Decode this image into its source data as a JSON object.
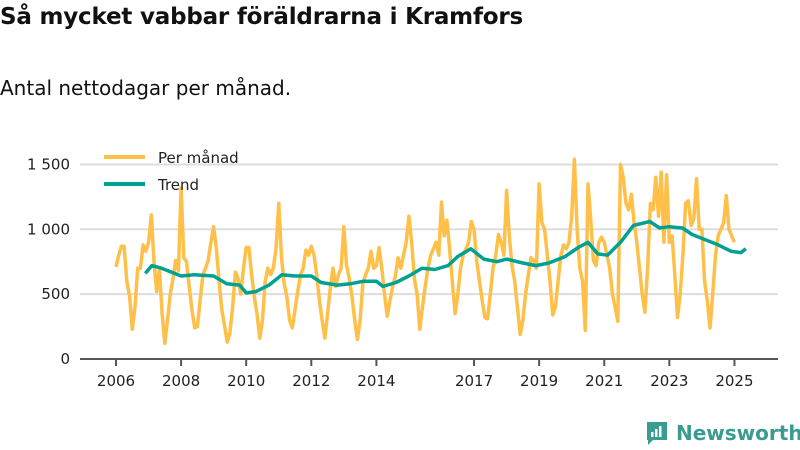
{
  "title": "Så mycket vabbar föräldrarna i Kramfors",
  "subtitle": "Antal nettodagar per månad.",
  "brand": "Newsworthy",
  "colors": {
    "monthly": "#ffc04a",
    "trend": "#00a192",
    "grid": "#dddddd",
    "axis": "#555555",
    "brand": "#3a9c91"
  },
  "chart_data": {
    "type": "line",
    "title": "Så mycket vabbar föräldrarna i Kramfors",
    "subtitle": "Antal nettodagar per månad.",
    "xlabel": "",
    "ylabel": "",
    "ylim": [
      0,
      1600
    ],
    "xlim": [
      2005.6,
      2025.7
    ],
    "yticks": [
      {
        "v": 0,
        "label": "0"
      },
      {
        "v": 500,
        "label": "500"
      },
      {
        "v": 1000,
        "label": "1 000"
      },
      {
        "v": 1500,
        "label": "1 500"
      }
    ],
    "xticks": [
      {
        "v": 2006,
        "label": "2006"
      },
      {
        "v": 2008,
        "label": "2008"
      },
      {
        "v": 2010,
        "label": "2010"
      },
      {
        "v": 2012,
        "label": "2012"
      },
      {
        "v": 2014,
        "label": "2014"
      },
      {
        "v": 2017,
        "label": "2017"
      },
      {
        "v": 2019,
        "label": "2019"
      },
      {
        "v": 2021,
        "label": "2021"
      },
      {
        "v": 2023,
        "label": "2023"
      },
      {
        "v": 2025,
        "label": "2025"
      }
    ],
    "grid": true,
    "legend_position": "top-left",
    "series": [
      {
        "name": "Per månad",
        "start": "2006-01",
        "frequency": "monthly",
        "values": [
          710,
          800,
          870,
          870,
          600,
          480,
          230,
          400,
          700,
          700,
          880,
          830,
          900,
          1110,
          750,
          520,
          700,
          350,
          120,
          300,
          500,
          620,
          760,
          680,
          1320,
          780,
          750,
          560,
          380,
          240,
          250,
          450,
          640,
          700,
          760,
          900,
          1020,
          850,
          600,
          380,
          260,
          130,
          200,
          400,
          670,
          620,
          500,
          700,
          860,
          860,
          650,
          480,
          350,
          160,
          300,
          600,
          700,
          650,
          700,
          850,
          1200,
          780,
          580,
          480,
          300,
          240,
          380,
          520,
          650,
          700,
          840,
          800,
          870,
          800,
          650,
          450,
          300,
          160,
          350,
          550,
          700,
          560,
          650,
          700,
          1020,
          720,
          620,
          480,
          300,
          150,
          300,
          580,
          650,
          700,
          830,
          700,
          720,
          860,
          700,
          500,
          330,
          450,
          560,
          640,
          780,
          700,
          800,
          900,
          1100,
          900,
          620,
          500,
          230,
          400,
          560,
          700,
          800,
          850,
          900,
          800,
          1210,
          950,
          1070,
          850,
          600,
          350,
          500,
          700,
          800,
          850,
          900,
          1060,
          1000,
          750,
          600,
          450,
          320,
          310,
          500,
          700,
          800,
          960,
          900,
          800,
          1300,
          950,
          720,
          600,
          400,
          190,
          300,
          500,
          650,
          780,
          760,
          700,
          1350,
          1050,
          1000,
          800,
          600,
          340,
          400,
          600,
          800,
          880,
          850,
          900,
          1100,
          1540,
          1000,
          700,
          600,
          220,
          1350,
          1080,
          760,
          720,
          900,
          940,
          900,
          800,
          700,
          500,
          400,
          290,
          1500,
          1400,
          1200,
          1150,
          1270,
          1050,
          900,
          700,
          500,
          360,
          700,
          1200,
          1150,
          1400,
          1100,
          1440,
          900,
          1420,
          900,
          950,
          650,
          320,
          500,
          800,
          1200,
          1220,
          1030,
          1080,
          1390,
          1000,
          1000,
          600,
          450,
          240,
          500,
          800,
          950,
          1000,
          1050,
          1260,
          1000,
          950,
          900
        ]
      },
      {
        "name": "Trend",
        "points": [
          [
            2006.9,
            660
          ],
          [
            2007.1,
            720
          ],
          [
            2007.4,
            700
          ],
          [
            2007.8,
            660
          ],
          [
            2008.0,
            640
          ],
          [
            2008.4,
            650
          ],
          [
            2009.0,
            640
          ],
          [
            2009.4,
            580
          ],
          [
            2009.8,
            570
          ],
          [
            2010.0,
            510
          ],
          [
            2010.3,
            520
          ],
          [
            2010.7,
            570
          ],
          [
            2011.1,
            650
          ],
          [
            2011.5,
            640
          ],
          [
            2012.0,
            640
          ],
          [
            2012.3,
            590
          ],
          [
            2012.8,
            570
          ],
          [
            2013.2,
            580
          ],
          [
            2013.6,
            600
          ],
          [
            2014.0,
            600
          ],
          [
            2014.2,
            560
          ],
          [
            2014.6,
            590
          ],
          [
            2015.0,
            640
          ],
          [
            2015.4,
            700
          ],
          [
            2015.8,
            690
          ],
          [
            2016.2,
            720
          ],
          [
            2016.5,
            790
          ],
          [
            2016.9,
            850
          ],
          [
            2017.3,
            770
          ],
          [
            2017.7,
            750
          ],
          [
            2018.0,
            770
          ],
          [
            2018.5,
            740
          ],
          [
            2018.9,
            720
          ],
          [
            2019.3,
            740
          ],
          [
            2019.8,
            790
          ],
          [
            2020.2,
            860
          ],
          [
            2020.5,
            900
          ],
          [
            2020.8,
            810
          ],
          [
            2021.1,
            800
          ],
          [
            2021.5,
            900
          ],
          [
            2021.9,
            1030
          ],
          [
            2022.4,
            1060
          ],
          [
            2022.7,
            1010
          ],
          [
            2023.0,
            1020
          ],
          [
            2023.4,
            1010
          ],
          [
            2023.7,
            960
          ],
          [
            2024.0,
            930
          ],
          [
            2024.5,
            880
          ],
          [
            2024.9,
            830
          ],
          [
            2025.2,
            820
          ],
          [
            2025.35,
            850
          ]
        ]
      }
    ]
  }
}
